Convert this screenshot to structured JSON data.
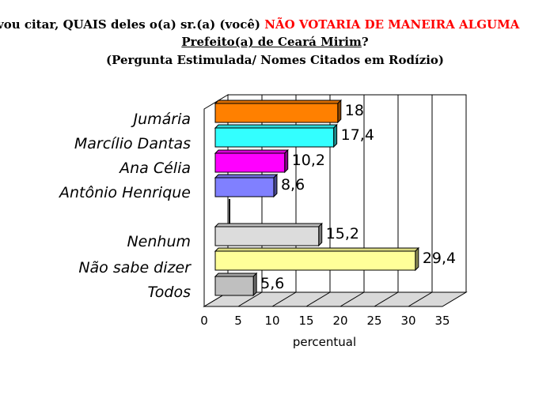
{
  "title": {
    "line1_prefix": "vou citar, QUAIS deles o(a) sr.(a) (você)",
    "line1_highlight": "NÃO VOTARIA  DE MANEIRA ALGUMA",
    "line2_underlined": "Prefeito(a) de Ceará Mirim",
    "line2_suffix": "?",
    "line3": "(Pergunta Estimulada/ Nomes Citados em Rodízio)"
  },
  "colors": {
    "highlight": "#ff0000",
    "grid": "#000000",
    "wall": "#ffffff",
    "floor": "#d9d9d9"
  },
  "chart_data": {
    "type": "bar",
    "orientation": "horizontal",
    "style": "3d",
    "categories": [
      "Jumária",
      "Marcílio Dantas",
      "Ana Célia",
      "Antônio Henrique",
      "Nenhum",
      "Não sabe dizer",
      "Todos"
    ],
    "values": [
      18,
      17.4,
      10.2,
      8.6,
      15.2,
      29.4,
      5.6
    ],
    "value_labels": [
      "18",
      "17,4",
      "10,2",
      "8,6",
      "15,2",
      "29,4",
      "5,6"
    ],
    "colors": [
      "#ff8000",
      "#33ffff",
      "#ff00ff",
      "#8080ff",
      "#dcdcdc",
      "#ffff99",
      "#bfbfbf"
    ],
    "xlabel": "percentual",
    "xlim": [
      0,
      35
    ],
    "xticks": [
      0,
      5,
      10,
      15,
      20,
      25,
      30,
      35
    ],
    "grid": true,
    "legend": "none"
  }
}
